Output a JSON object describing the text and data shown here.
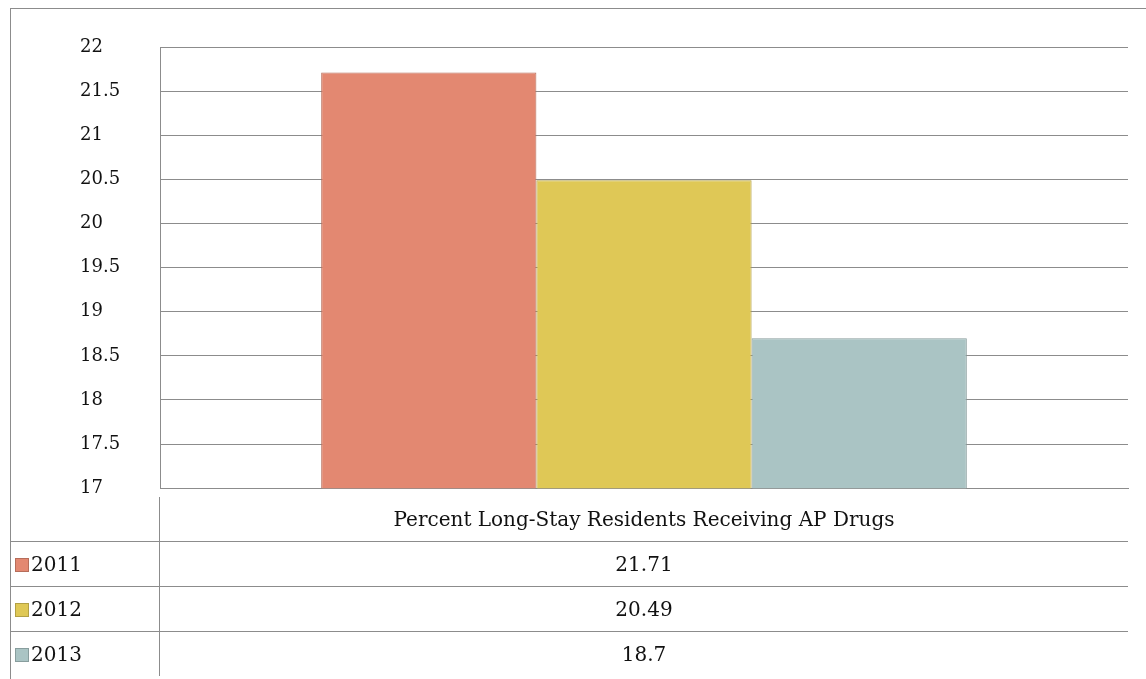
{
  "chart_data": {
    "type": "bar",
    "categories": [
      "Percent Long-Stay Residents Receiving AP Drugs"
    ],
    "series": [
      {
        "name": "2011",
        "color": "#e38871",
        "values": [
          21.71
        ]
      },
      {
        "name": "2012",
        "color": "#dfc856",
        "values": [
          20.49
        ]
      },
      {
        "name": "2013",
        "color": "#aac4c4",
        "values": [
          18.7
        ]
      }
    ],
    "ylim": [
      17,
      22
    ],
    "yticks": [
      17,
      17.5,
      18,
      18.5,
      19,
      19.5,
      20,
      20.5,
      21,
      21.5,
      22
    ],
    "grid": "y",
    "legend": "bottom",
    "annotations": [
      "21.71",
      "20.49",
      "18.7"
    ]
  }
}
